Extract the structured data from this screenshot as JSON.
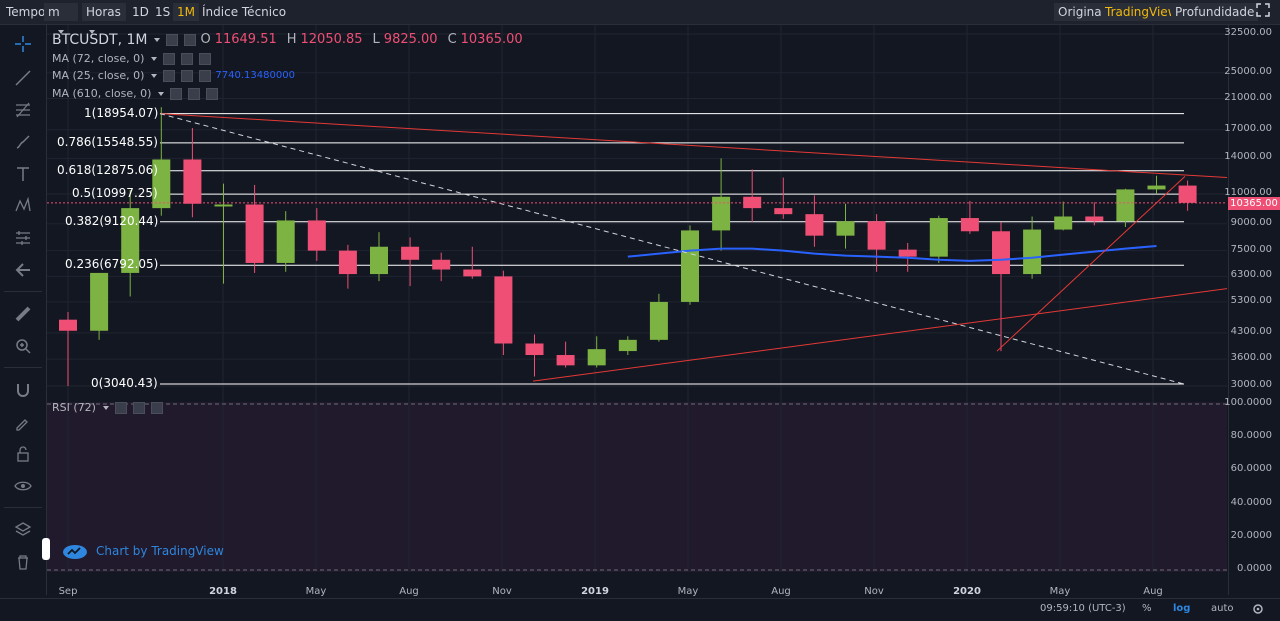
{
  "toolbar": {
    "items": [
      "Tempo",
      "m",
      "Horas",
      "1D",
      "1S",
      "1M",
      "Índice Técnico"
    ],
    "active": "1M",
    "right_items": [
      "Original",
      "TradingView",
      "Profundidade"
    ],
    "right_active": "TradingView"
  },
  "legend": {
    "symbol": "BTCUSDT, 1M",
    "o_label": "O",
    "o_value": "11649.51",
    "h_label": "H",
    "h_value": "12050.85",
    "l_label": "L",
    "l_value": "9825.00",
    "c_label": "C",
    "c_value": "10365.00",
    "ma1": "MA (72, close, 0)",
    "ma2": "MA (25, close, 0)",
    "ma2_value": "7740.13480000",
    "ma3": "MA (610, close, 0)",
    "rsi": "RSI (72)"
  },
  "fib": [
    {
      "label": "1(18954.07)",
      "price": 18954.07
    },
    {
      "label": "0.786(15548.55)",
      "price": 15548.55
    },
    {
      "label": "0.618(12875.06)",
      "price": 12875.06
    },
    {
      "label": "0.5(10997.25)",
      "price": 10997.25
    },
    {
      "label": "0.382(9120.44)",
      "price": 9120.44
    },
    {
      "label": "0.236(6792.05)",
      "price": 6792.05
    },
    {
      "label": "0(3040.43)",
      "price": 3040.43
    }
  ],
  "price_axis": [
    "32500.00",
    "25000.00",
    "21000.00",
    "17000.00",
    "14000.00",
    "11000.00",
    "9000.00",
    "7500.00",
    "6300.00",
    "5300.00",
    "4300.00",
    "3600.00",
    "3000.00"
  ],
  "current_price": "10365.00",
  "rsi_axis": [
    "100.0000",
    "80.0000",
    "60.0000",
    "40.0000",
    "20.0000",
    "0.0000"
  ],
  "time_axis": [
    "Sep",
    "2018",
    "May",
    "Aug",
    "Nov",
    "2019",
    "May",
    "Aug",
    "Nov",
    "2020",
    "May",
    "Aug"
  ],
  "watermark": "Chart by TradingView",
  "bottom": {
    "clock": "09:59:10 (UTC-3)",
    "pct": "%",
    "log": "log",
    "auto": "auto"
  },
  "colors": {
    "up": "#7cb342",
    "down": "#ef4f74",
    "ma": "#2962ff",
    "trend": "#e53935",
    "fib": "#ffffff",
    "accent": "#f0b90b"
  },
  "chart_data": {
    "type": "candlestick",
    "scale": "log",
    "candles": [
      {
        "o": 4700,
        "h": 4950,
        "l": 3000,
        "c": 4360
      },
      {
        "o": 4360,
        "h": 6400,
        "l": 4100,
        "c": 6450
      },
      {
        "o": 6450,
        "h": 11300,
        "l": 5500,
        "c": 10000
      },
      {
        "o": 10000,
        "h": 19800,
        "l": 9500,
        "c": 13900
      },
      {
        "o": 13900,
        "h": 17200,
        "l": 9400,
        "c": 10300
      },
      {
        "o": 10250,
        "h": 11800,
        "l": 6000,
        "c": 10250
      },
      {
        "o": 10250,
        "h": 11700,
        "l": 6450,
        "c": 6900
      },
      {
        "o": 6900,
        "h": 9800,
        "l": 6500,
        "c": 9200
      },
      {
        "o": 9200,
        "h": 10000,
        "l": 7000,
        "c": 7500
      },
      {
        "o": 7500,
        "h": 7800,
        "l": 5800,
        "c": 6400
      },
      {
        "o": 6400,
        "h": 8500,
        "l": 6100,
        "c": 7700
      },
      {
        "o": 7700,
        "h": 8200,
        "l": 5900,
        "c": 7050
      },
      {
        "o": 7050,
        "h": 7400,
        "l": 6100,
        "c": 6600
      },
      {
        "o": 6600,
        "h": 7700,
        "l": 6200,
        "c": 6300
      },
      {
        "o": 6300,
        "h": 6550,
        "l": 3700,
        "c": 4000
      },
      {
        "o": 4000,
        "h": 4250,
        "l": 3200,
        "c": 3700
      },
      {
        "o": 3700,
        "h": 4050,
        "l": 3400,
        "c": 3450
      },
      {
        "o": 3450,
        "h": 4200,
        "l": 3400,
        "c": 3850
      },
      {
        "o": 3800,
        "h": 4200,
        "l": 3700,
        "c": 4100
      },
      {
        "o": 4100,
        "h": 5600,
        "l": 4050,
        "c": 5300
      },
      {
        "o": 5300,
        "h": 8900,
        "l": 5200,
        "c": 8600
      },
      {
        "o": 8600,
        "h": 14000,
        "l": 7500,
        "c": 10800
      },
      {
        "o": 10800,
        "h": 13000,
        "l": 9100,
        "c": 10000
      },
      {
        "o": 10000,
        "h": 12300,
        "l": 9300,
        "c": 9600
      },
      {
        "o": 9600,
        "h": 10900,
        "l": 7700,
        "c": 8300
      },
      {
        "o": 8300,
        "h": 10300,
        "l": 7600,
        "c": 9150
      },
      {
        "o": 9150,
        "h": 9600,
        "l": 6500,
        "c": 7550
      },
      {
        "o": 7550,
        "h": 7900,
        "l": 6500,
        "c": 7200
      },
      {
        "o": 7200,
        "h": 9500,
        "l": 6900,
        "c": 9350
      },
      {
        "o": 9350,
        "h": 10500,
        "l": 8400,
        "c": 8550
      },
      {
        "o": 8550,
        "h": 9100,
        "l": 3800,
        "c": 6400
      },
      {
        "o": 6400,
        "h": 9450,
        "l": 6200,
        "c": 8650
      },
      {
        "o": 8650,
        "h": 10450,
        "l": 8600,
        "c": 9450
      },
      {
        "o": 9450,
        "h": 10400,
        "l": 8900,
        "c": 9150
      },
      {
        "o": 9150,
        "h": 11400,
        "l": 8800,
        "c": 11350
      },
      {
        "o": 11350,
        "h": 12450,
        "l": 11000,
        "c": 11650
      },
      {
        "o": 11649.51,
        "h": 12050.85,
        "l": 9825,
        "c": 10365
      }
    ],
    "ma25": [
      7200,
      7350,
      7500,
      7600,
      7600,
      7500,
      7350,
      7250,
      7200,
      7150,
      7050,
      7000,
      7050,
      7150,
      7300,
      7450,
      7600,
      7740
    ],
    "price_range_log": [
      2800,
      36000
    ],
    "rsi_range": [
      0,
      100
    ]
  }
}
